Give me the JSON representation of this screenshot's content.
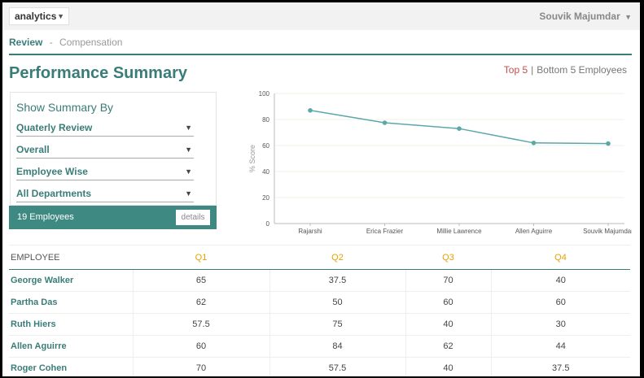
{
  "app_select": {
    "label": "analytics"
  },
  "user": {
    "name": "Souvik Majumdar"
  },
  "breadcrumb": {
    "active": "Review",
    "separator": "-",
    "sub": "Compensation"
  },
  "page": {
    "title": "Performance Summary"
  },
  "top_bottom": {
    "top": "Top 5",
    "divider": "|",
    "bottom": "Bottom 5 Employees"
  },
  "summary_panel": {
    "title": "Show Summary By",
    "dropdowns": [
      "Quaterly Review",
      "Overall",
      "Employee Wise",
      "All Departments"
    ]
  },
  "employees_bar": {
    "count_label": "19 Employees",
    "details_label": "details"
  },
  "chart_data": {
    "type": "line",
    "categories": [
      "Rajarshi",
      "Erica Frazier",
      "Millie Lawrence",
      "Allen Aguirre",
      "Souvik Majumdar"
    ],
    "values": [
      87,
      77.5,
      73,
      62,
      61.5
    ],
    "ylabel": "% Score",
    "xlabel": "",
    "ylim": [
      0,
      100
    ],
    "yticks": [
      "0",
      "20",
      "40",
      "60",
      "80",
      "100"
    ],
    "grid": true,
    "line_color": "#5ba7aa"
  },
  "table": {
    "headers": [
      "EMPLOYEE",
      "Q1",
      "Q2",
      "Q3",
      "Q4"
    ],
    "rows": [
      [
        "George Walker",
        "65",
        "37.5",
        "70",
        "40"
      ],
      [
        "Partha Das",
        "62",
        "50",
        "60",
        "60"
      ],
      [
        "Ruth Hiers",
        "57.5",
        "75",
        "40",
        "30"
      ],
      [
        "Allen Aguirre",
        "60",
        "84",
        "62",
        "44"
      ],
      [
        "Roger Cohen",
        "70",
        "57.5",
        "40",
        "37.5"
      ]
    ]
  },
  "colors": {
    "accent": "#3a7d78",
    "quarter_header": "#e8a100",
    "top5": "#c0504d"
  }
}
